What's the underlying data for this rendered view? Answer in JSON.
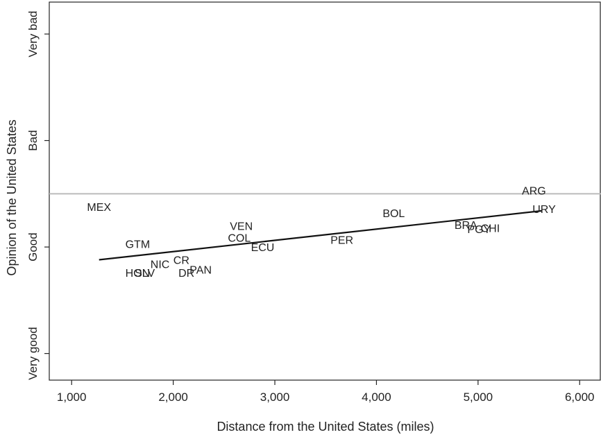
{
  "chart_data": {
    "type": "scatter",
    "xlabel": "Distance from the United States (miles)",
    "ylabel": "Opinion of the United States",
    "xlim": [
      780,
      6210
    ],
    "ylim": [
      0.75,
      4.3
    ],
    "x_ticks": [
      {
        "value": 1000,
        "label": "1,000"
      },
      {
        "value": 2000,
        "label": "2,000"
      },
      {
        "value": 3000,
        "label": "3,000"
      },
      {
        "value": 4000,
        "label": "4,000"
      },
      {
        "value": 5000,
        "label": "5,000"
      },
      {
        "value": 6000,
        "label": "6,000"
      }
    ],
    "y_ticks": [
      {
        "value": 1,
        "label": "Very good"
      },
      {
        "value": 2,
        "label": "Good"
      },
      {
        "value": 3,
        "label": "Bad"
      },
      {
        "value": 4,
        "label": "Very bad"
      }
    ],
    "reference_line": {
      "y": 2.5,
      "color": "#bbbbbb"
    },
    "fit_line": {
      "x": [
        1270,
        5630
      ],
      "y": [
        1.88,
        2.34
      ],
      "color": "#111111"
    },
    "points": [
      {
        "label": "MEX",
        "x": 1270,
        "y": 2.38
      },
      {
        "label": "GTM",
        "x": 1650,
        "y": 2.03
      },
      {
        "label": "HON",
        "x": 1650,
        "y": 1.76
      },
      {
        "label": "SLV",
        "x": 1720,
        "y": 1.76
      },
      {
        "label": "NIC",
        "x": 1870,
        "y": 1.84
      },
      {
        "label": "CR",
        "x": 2080,
        "y": 1.88
      },
      {
        "label": "DR",
        "x": 2130,
        "y": 1.76
      },
      {
        "label": "PAN",
        "x": 2270,
        "y": 1.79
      },
      {
        "label": "VEN",
        "x": 2670,
        "y": 2.2
      },
      {
        "label": "COL",
        "x": 2650,
        "y": 2.09
      },
      {
        "label": "ECU",
        "x": 2880,
        "y": 2.0
      },
      {
        "label": "PER",
        "x": 3660,
        "y": 2.07
      },
      {
        "label": "BOL",
        "x": 4170,
        "y": 2.32
      },
      {
        "label": "BRA",
        "x": 4880,
        "y": 2.21
      },
      {
        "label": "PGY",
        "x": 5010,
        "y": 2.17
      },
      {
        "label": "CHI",
        "x": 5120,
        "y": 2.18
      },
      {
        "label": "ARG",
        "x": 5550,
        "y": 2.53
      },
      {
        "label": "URY",
        "x": 5650,
        "y": 2.36
      }
    ]
  }
}
